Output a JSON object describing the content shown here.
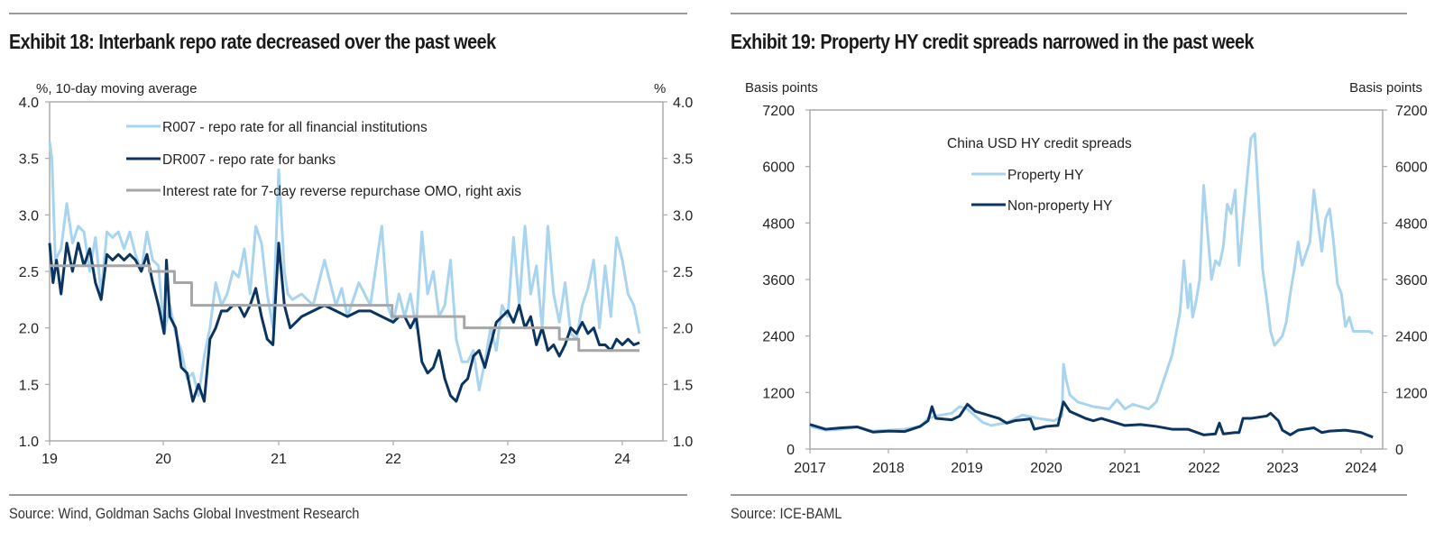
{
  "colors": {
    "light_blue": "#a9d4f0",
    "dark_blue": "#0b3560",
    "grey": "#a6a6a6",
    "axis": "#aaaaaa"
  },
  "chart_data": [
    {
      "type": "line",
      "title": "Exhibit 18: Interbank repo rate decreased over the past week",
      "ylabel_left": "%, 10-day moving average",
      "ylabel_right": "%",
      "xlabel": "",
      "x_ticks": [
        "19",
        "20",
        "21",
        "22",
        "23",
        "24"
      ],
      "xlim": [
        2019.0,
        2024.2
      ],
      "ylim": [
        1.0,
        4.0
      ],
      "y_ticks": [
        "1.0",
        "1.5",
        "2.0",
        "2.5",
        "3.0",
        "3.5",
        "4.0"
      ],
      "grid": false,
      "legend_position": "top",
      "source": "Source: Wind, Goldman Sachs Global Investment Research",
      "series": [
        {
          "name": "R007 - repo rate for all financial institutions",
          "color": "#a9d4f0",
          "x": [
            2019.0,
            2019.02,
            2019.05,
            2019.1,
            2019.15,
            2019.2,
            2019.25,
            2019.3,
            2019.35,
            2019.4,
            2019.45,
            2019.5,
            2019.55,
            2019.6,
            2019.65,
            2019.7,
            2019.75,
            2019.8,
            2019.85,
            2019.9,
            2019.95,
            2020.0,
            2020.05,
            2020.1,
            2020.15,
            2020.2,
            2020.25,
            2020.3,
            2020.35,
            2020.4,
            2020.45,
            2020.5,
            2020.55,
            2020.6,
            2020.65,
            2020.7,
            2020.75,
            2020.8,
            2020.85,
            2020.9,
            2020.95,
            2021.0,
            2021.05,
            2021.08,
            2021.12,
            2021.2,
            2021.3,
            2021.4,
            2021.5,
            2021.55,
            2021.6,
            2021.7,
            2021.8,
            2021.9,
            2021.95,
            2022.0,
            2022.05,
            2022.1,
            2022.15,
            2022.2,
            2022.25,
            2022.3,
            2022.35,
            2022.4,
            2022.45,
            2022.5,
            2022.55,
            2022.6,
            2022.65,
            2022.7,
            2022.75,
            2022.8,
            2022.85,
            2022.9,
            2022.95,
            2023.0,
            2023.05,
            2023.1,
            2023.15,
            2023.2,
            2023.25,
            2023.3,
            2023.35,
            2023.4,
            2023.45,
            2023.5,
            2023.55,
            2023.6,
            2023.65,
            2023.7,
            2023.75,
            2023.8,
            2023.85,
            2023.9,
            2023.95,
            2024.0,
            2024.05,
            2024.1,
            2024.15
          ],
          "y": [
            3.65,
            3.5,
            2.6,
            2.7,
            3.1,
            2.75,
            2.9,
            2.85,
            2.5,
            2.8,
            2.3,
            2.85,
            2.8,
            2.85,
            2.7,
            2.85,
            2.65,
            2.5,
            2.85,
            2.6,
            2.55,
            1.95,
            2.2,
            1.95,
            1.8,
            1.55,
            1.6,
            1.4,
            1.75,
            2.0,
            2.4,
            2.2,
            2.3,
            2.5,
            2.45,
            2.7,
            2.3,
            2.9,
            2.75,
            2.3,
            2.0,
            3.4,
            2.5,
            2.3,
            2.25,
            2.3,
            2.2,
            2.6,
            2.2,
            2.35,
            2.1,
            2.4,
            2.2,
            2.9,
            2.2,
            2.05,
            2.3,
            2.1,
            2.3,
            2.0,
            2.85,
            2.3,
            2.5,
            2.1,
            2.2,
            2.6,
            1.9,
            1.7,
            1.7,
            1.8,
            1.45,
            1.7,
            2.0,
            1.8,
            2.2,
            2.1,
            2.8,
            2.2,
            2.9,
            2.3,
            2.55,
            2.0,
            2.9,
            2.3,
            2.05,
            2.4,
            1.95,
            1.9,
            2.2,
            2.35,
            2.6,
            2.0,
            2.55,
            2.1,
            2.8,
            2.6,
            2.3,
            2.2,
            1.95
          ]
        },
        {
          "name": "DR007 - repo rate for banks",
          "color": "#0b3560",
          "x": [
            2019.0,
            2019.03,
            2019.06,
            2019.1,
            2019.15,
            2019.2,
            2019.25,
            2019.3,
            2019.35,
            2019.4,
            2019.45,
            2019.5,
            2019.55,
            2019.6,
            2019.65,
            2019.7,
            2019.75,
            2019.8,
            2019.85,
            2019.9,
            2019.95,
            2020.0,
            2020.02,
            2020.05,
            2020.1,
            2020.15,
            2020.2,
            2020.25,
            2020.3,
            2020.35,
            2020.4,
            2020.45,
            2020.5,
            2020.55,
            2020.6,
            2020.65,
            2020.7,
            2020.75,
            2020.8,
            2020.85,
            2020.9,
            2020.95,
            2021.0,
            2021.05,
            2021.1,
            2021.15,
            2021.2,
            2021.3,
            2021.4,
            2021.5,
            2021.6,
            2021.7,
            2021.8,
            2021.9,
            2022.0,
            2022.05,
            2022.1,
            2022.15,
            2022.2,
            2022.25,
            2022.3,
            2022.35,
            2022.4,
            2022.45,
            2022.5,
            2022.55,
            2022.6,
            2022.65,
            2022.7,
            2022.75,
            2022.8,
            2022.85,
            2022.9,
            2022.95,
            2023.0,
            2023.05,
            2023.1,
            2023.15,
            2023.2,
            2023.25,
            2023.3,
            2023.35,
            2023.4,
            2023.45,
            2023.5,
            2023.55,
            2023.6,
            2023.65,
            2023.7,
            2023.75,
            2023.8,
            2023.85,
            2023.9,
            2023.95,
            2024.0,
            2024.05,
            2024.1,
            2024.15
          ],
          "y": [
            2.75,
            2.4,
            2.6,
            2.3,
            2.75,
            2.5,
            2.75,
            2.55,
            2.7,
            2.4,
            2.25,
            2.65,
            2.6,
            2.65,
            2.6,
            2.65,
            2.6,
            2.5,
            2.65,
            2.4,
            2.2,
            1.95,
            2.6,
            2.1,
            2.0,
            1.65,
            1.6,
            1.35,
            1.5,
            1.35,
            1.9,
            2.0,
            2.15,
            2.15,
            2.2,
            2.2,
            2.1,
            2.2,
            2.35,
            2.1,
            1.9,
            1.85,
            2.75,
            2.2,
            2.0,
            2.05,
            2.1,
            2.15,
            2.2,
            2.15,
            2.1,
            2.15,
            2.15,
            2.1,
            2.05,
            2.1,
            2.1,
            2.0,
            2.1,
            1.7,
            1.6,
            1.65,
            1.8,
            1.55,
            1.4,
            1.35,
            1.5,
            1.55,
            1.75,
            1.8,
            1.65,
            1.85,
            2.05,
            2.1,
            2.15,
            2.05,
            2.2,
            2.0,
            2.1,
            1.85,
            2.0,
            1.8,
            1.85,
            1.75,
            1.85,
            2.0,
            1.95,
            2.05,
            1.95,
            2.0,
            1.85,
            1.85,
            1.8,
            1.9,
            1.85,
            1.9,
            1.85,
            1.87
          ]
        },
        {
          "name": "Interest rate for 7-day reverse repurchase OMO, right axis",
          "color": "#a6a6a6",
          "axis": "right",
          "step": true,
          "x": [
            2019.0,
            2019.87,
            2020.09,
            2020.24,
            2021.99,
            2022.62,
            2023.45,
            2023.62,
            2024.15
          ],
          "y": [
            2.55,
            2.5,
            2.4,
            2.2,
            2.1,
            2.0,
            1.9,
            1.8,
            1.8
          ]
        }
      ]
    },
    {
      "type": "line",
      "title": "Exhibit 19: Property HY credit spreads narrowed in the past week",
      "ylabel_left": "Basis points",
      "ylabel_right": "Basis points",
      "xlabel": "",
      "x_ticks": [
        "2017",
        "2018",
        "2019",
        "2020",
        "2021",
        "2022",
        "2023",
        "2024"
      ],
      "xlim": [
        2017.0,
        2024.25
      ],
      "ylim": [
        0,
        7200
      ],
      "y_ticks": [
        "0",
        "1200",
        "2400",
        "3600",
        "4800",
        "6000",
        "7200"
      ],
      "grid": false,
      "legend_title": "China USD HY credit spreads",
      "legend_position": "top-center",
      "source": "Source: ICE-BAML",
      "series": [
        {
          "name": "Property HY",
          "color": "#a9d4f0",
          "x": [
            2017.0,
            2017.2,
            2017.4,
            2017.6,
            2017.8,
            2018.0,
            2018.2,
            2018.4,
            2018.5,
            2018.6,
            2018.8,
            2018.9,
            2019.0,
            2019.1,
            2019.2,
            2019.3,
            2019.5,
            2019.7,
            2019.9,
            2020.1,
            2020.2,
            2020.22,
            2020.25,
            2020.3,
            2020.4,
            2020.6,
            2020.8,
            2020.9,
            2021.0,
            2021.1,
            2021.2,
            2021.3,
            2021.4,
            2021.5,
            2021.6,
            2021.7,
            2021.75,
            2021.8,
            2021.83,
            2021.86,
            2021.9,
            2021.95,
            2022.0,
            2022.05,
            2022.1,
            2022.15,
            2022.2,
            2022.25,
            2022.3,
            2022.35,
            2022.4,
            2022.45,
            2022.5,
            2022.6,
            2022.65,
            2022.75,
            2022.8,
            2022.85,
            2022.9,
            2023.0,
            2023.05,
            2023.1,
            2023.15,
            2023.2,
            2023.25,
            2023.35,
            2023.4,
            2023.5,
            2023.55,
            2023.6,
            2023.65,
            2023.7,
            2023.75,
            2023.8,
            2023.85,
            2023.9,
            2023.95,
            2024.0,
            2024.05,
            2024.1,
            2024.15
          ],
          "y": [
            480,
            400,
            420,
            470,
            380,
            400,
            420,
            480,
            650,
            700,
            760,
            900,
            850,
            700,
            560,
            500,
            560,
            720,
            650,
            600,
            700,
            1800,
            1500,
            1150,
            1000,
            900,
            850,
            1050,
            850,
            950,
            900,
            850,
            1000,
            1500,
            2000,
            2900,
            4000,
            3000,
            3500,
            2800,
            3100,
            3600,
            5600,
            4600,
            3600,
            4000,
            3900,
            4300,
            5200,
            5000,
            5500,
            3900,
            4800,
            6600,
            6700,
            3800,
            3200,
            2500,
            2200,
            2400,
            2700,
            3300,
            3800,
            4400,
            3900,
            4400,
            5500,
            4200,
            4900,
            5100,
            4400,
            3500,
            3300,
            2600,
            2800,
            2500,
            2500,
            2500,
            2500,
            2500,
            2450
          ]
        },
        {
          "name": "Non-property HY",
          "color": "#0b3560",
          "x": [
            2017.0,
            2017.2,
            2017.4,
            2017.6,
            2017.8,
            2018.0,
            2018.2,
            2018.4,
            2018.5,
            2018.55,
            2018.6,
            2018.8,
            2018.9,
            2019.0,
            2019.1,
            2019.3,
            2019.4,
            2019.5,
            2019.6,
            2019.8,
            2019.85,
            2020.0,
            2020.15,
            2020.22,
            2020.3,
            2020.5,
            2020.6,
            2020.7,
            2020.9,
            2021.0,
            2021.2,
            2021.4,
            2021.6,
            2021.8,
            2022.0,
            2022.15,
            2022.2,
            2022.25,
            2022.4,
            2022.45,
            2022.5,
            2022.6,
            2022.8,
            2022.85,
            2022.95,
            2023.0,
            2023.1,
            2023.2,
            2023.4,
            2023.5,
            2023.6,
            2023.8,
            2024.0,
            2024.15
          ],
          "y": [
            520,
            420,
            450,
            470,
            360,
            380,
            370,
            480,
            600,
            900,
            650,
            620,
            700,
            950,
            800,
            700,
            650,
            550,
            600,
            640,
            420,
            480,
            500,
            1000,
            800,
            650,
            600,
            650,
            550,
            500,
            520,
            480,
            420,
            420,
            300,
            320,
            550,
            320,
            350,
            350,
            650,
            650,
            700,
            760,
            600,
            400,
            300,
            400,
            450,
            350,
            380,
            400,
            350,
            250
          ]
        }
      ]
    }
  ]
}
